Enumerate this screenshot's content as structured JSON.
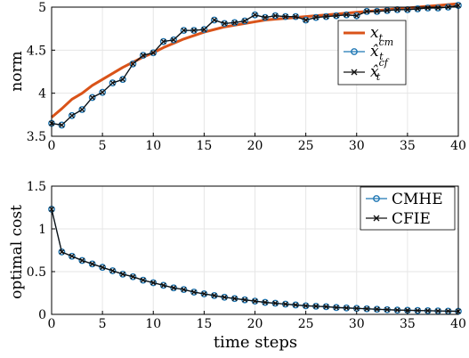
{
  "colors": {
    "true_state": "#d95319",
    "cmhe": "#1f77b4",
    "cfie": "#111111",
    "grid": "#e6e6e6",
    "axis": "#000000"
  },
  "chart_data": [
    {
      "type": "line",
      "title": "",
      "xlabel": "",
      "ylabel": "norm",
      "xlim": [
        0,
        40
      ],
      "ylim": [
        3.5,
        5
      ],
      "grid": true,
      "legend_position": "top-right",
      "x_ticks": [
        0,
        5,
        10,
        15,
        20,
        25,
        30,
        35,
        40
      ],
      "y_ticks": [
        3.5,
        4,
        4.5,
        5
      ],
      "y_tick_labels": [
        "3.5",
        "4",
        "4.5",
        "5"
      ],
      "x": [
        0,
        1,
        2,
        3,
        4,
        5,
        6,
        7,
        8,
        9,
        10,
        11,
        12,
        13,
        14,
        15,
        16,
        17,
        18,
        19,
        20,
        21,
        22,
        23,
        24,
        25,
        26,
        27,
        28,
        29,
        30,
        31,
        32,
        33,
        34,
        35,
        36,
        37,
        38,
        39,
        40
      ],
      "series": [
        {
          "name": "x_t",
          "legend_main": "x",
          "legend_sub": "t",
          "legend_sup": "",
          "marker": "none",
          "values": [
            3.72,
            3.82,
            3.93,
            4.0,
            4.09,
            4.16,
            4.23,
            4.3,
            4.36,
            4.42,
            4.47,
            4.53,
            4.58,
            4.63,
            4.67,
            4.71,
            4.74,
            4.77,
            4.79,
            4.81,
            4.83,
            4.85,
            4.86,
            4.87,
            4.88,
            4.89,
            4.9,
            4.91,
            4.92,
            4.93,
            4.94,
            4.95,
            4.96,
            4.97,
            4.98,
            4.99,
            5.0,
            5.01,
            5.02,
            5.03,
            5.04
          ]
        },
        {
          "name": "x̂_t^cm",
          "legend_main": "x̂",
          "legend_sub": "t",
          "legend_sup": "cm",
          "marker": "circle",
          "values": [
            3.65,
            3.63,
            3.74,
            3.81,
            3.95,
            4.01,
            4.12,
            4.16,
            4.34,
            4.44,
            4.47,
            4.6,
            4.62,
            4.73,
            4.73,
            4.74,
            4.85,
            4.81,
            4.82,
            4.84,
            4.91,
            4.88,
            4.9,
            4.89,
            4.89,
            4.85,
            4.88,
            4.89,
            4.9,
            4.91,
            4.9,
            4.95,
            4.95,
            4.96,
            4.97,
            4.97,
            4.98,
            4.99,
            4.99,
            5.0,
            5.02
          ]
        },
        {
          "name": "x̂_t^cf",
          "legend_main": "x̂",
          "legend_sub": "t",
          "legend_sup": "cf",
          "marker": "x",
          "values": [
            3.65,
            3.63,
            3.74,
            3.81,
            3.95,
            4.01,
            4.12,
            4.16,
            4.34,
            4.44,
            4.47,
            4.6,
            4.62,
            4.73,
            4.73,
            4.74,
            4.85,
            4.81,
            4.82,
            4.84,
            4.91,
            4.88,
            4.9,
            4.89,
            4.89,
            4.85,
            4.88,
            4.89,
            4.9,
            4.91,
            4.9,
            4.95,
            4.95,
            4.96,
            4.97,
            4.97,
            4.98,
            4.99,
            4.99,
            5.0,
            5.02
          ]
        }
      ]
    },
    {
      "type": "line",
      "title": "",
      "xlabel": "time steps",
      "ylabel": "optimal cost",
      "xlim": [
        0,
        40
      ],
      "ylim": [
        0,
        1.5
      ],
      "grid": true,
      "legend_position": "top-right",
      "x_ticks": [
        0,
        5,
        10,
        15,
        20,
        25,
        30,
        35,
        40
      ],
      "y_ticks": [
        0,
        0.5,
        1,
        1.5
      ],
      "y_tick_labels": [
        "0",
        "0.5",
        "1",
        "1.5"
      ],
      "x": [
        0,
        1,
        2,
        3,
        4,
        5,
        6,
        7,
        8,
        9,
        10,
        11,
        12,
        13,
        14,
        15,
        16,
        17,
        18,
        19,
        20,
        21,
        22,
        23,
        24,
        25,
        26,
        27,
        28,
        29,
        30,
        31,
        32,
        33,
        34,
        35,
        36,
        37,
        38,
        39,
        40
      ],
      "series": [
        {
          "name": "CMHE",
          "marker": "circle",
          "values": [
            1.23,
            0.73,
            0.68,
            0.63,
            0.59,
            0.55,
            0.51,
            0.47,
            0.44,
            0.4,
            0.37,
            0.34,
            0.31,
            0.29,
            0.26,
            0.24,
            0.22,
            0.2,
            0.185,
            0.17,
            0.155,
            0.14,
            0.13,
            0.12,
            0.11,
            0.1,
            0.095,
            0.09,
            0.08,
            0.075,
            0.07,
            0.065,
            0.06,
            0.055,
            0.05,
            0.048,
            0.045,
            0.043,
            0.04,
            0.038,
            0.036
          ]
        },
        {
          "name": "CFIE",
          "marker": "x",
          "values": [
            1.23,
            0.73,
            0.68,
            0.63,
            0.59,
            0.55,
            0.51,
            0.47,
            0.44,
            0.4,
            0.37,
            0.34,
            0.31,
            0.29,
            0.26,
            0.24,
            0.22,
            0.2,
            0.185,
            0.17,
            0.155,
            0.14,
            0.13,
            0.12,
            0.11,
            0.1,
            0.095,
            0.09,
            0.08,
            0.075,
            0.07,
            0.065,
            0.06,
            0.055,
            0.05,
            0.048,
            0.045,
            0.043,
            0.04,
            0.038,
            0.036
          ]
        }
      ]
    }
  ]
}
